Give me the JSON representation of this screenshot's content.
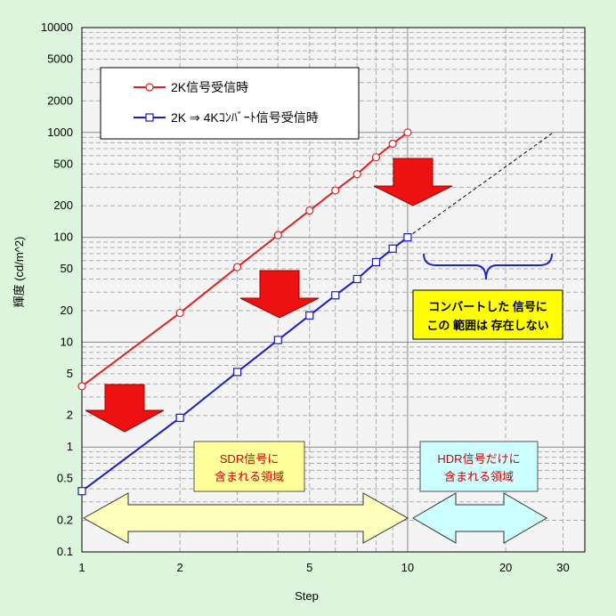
{
  "chart_data": {
    "type": "line",
    "xlabel": "Step",
    "ylabel": "輝度 (cd/m^2)",
    "x_scale": "log",
    "y_scale": "log",
    "xlim": [
      1,
      35
    ],
    "ylim": [
      0.1,
      10000
    ],
    "x_tick_values": [
      1,
      2,
      5,
      10,
      20,
      30
    ],
    "x_tick_labels": [
      "1",
      "2",
      "5",
      "10",
      "20",
      "30"
    ],
    "y_tick_values": [
      0.1,
      0.2,
      0.5,
      1,
      2,
      5,
      10,
      20,
      50,
      100,
      200,
      500,
      1000,
      2000,
      5000,
      10000
    ],
    "y_tick_labels": [
      "0.1",
      "0.2",
      "0.5",
      "1",
      "2",
      "5",
      "10",
      "20",
      "50",
      "100",
      "200",
      "500",
      "1000",
      "2000",
      "5000",
      "10000"
    ],
    "grid": true,
    "legend_position": "top-left",
    "series": [
      {
        "name": "2K信号受信時",
        "color": "#dd2222",
        "marker": "circle",
        "x": [
          1,
          2,
          3,
          4,
          5,
          6,
          7,
          8,
          9,
          10
        ],
        "y": [
          3.8,
          19,
          52,
          105,
          180,
          280,
          400,
          580,
          780,
          1000
        ]
      },
      {
        "name": "2K ⇒ 4Kｺﾝﾊﾞｰﾄ信号受信時",
        "color": "#1a1acc",
        "marker": "square",
        "x": [
          1,
          2,
          3,
          4,
          5,
          6,
          7,
          8,
          9,
          10
        ],
        "y": [
          0.38,
          1.9,
          5.2,
          10.5,
          18,
          28,
          40,
          58,
          78,
          100
        ]
      }
    ],
    "dashed_extension": {
      "x": [
        10,
        28
      ],
      "y": [
        100,
        1000
      ]
    },
    "annotations": {
      "conversion_note": [
        "コンバートした 信号に",
        "この 範囲は 存在しない"
      ],
      "sdr_region": [
        "SDR信号に",
        "含まれる領域"
      ],
      "hdr_region": [
        "HDR信号だけに",
        "含まれる領域"
      ]
    },
    "colors": {
      "background": "#dcf5dc",
      "plot_background": "#f4f4f4",
      "down_arrow": "#ee1111",
      "sdr_arrow": "#ffffbb",
      "hdr_arrow": "#ccffff",
      "brace": "#2222cc",
      "note_box": "#ffff00",
      "sdr_box": "#ffff99",
      "hdr_box": "#ccffff",
      "region_text": "#cc0000"
    }
  }
}
